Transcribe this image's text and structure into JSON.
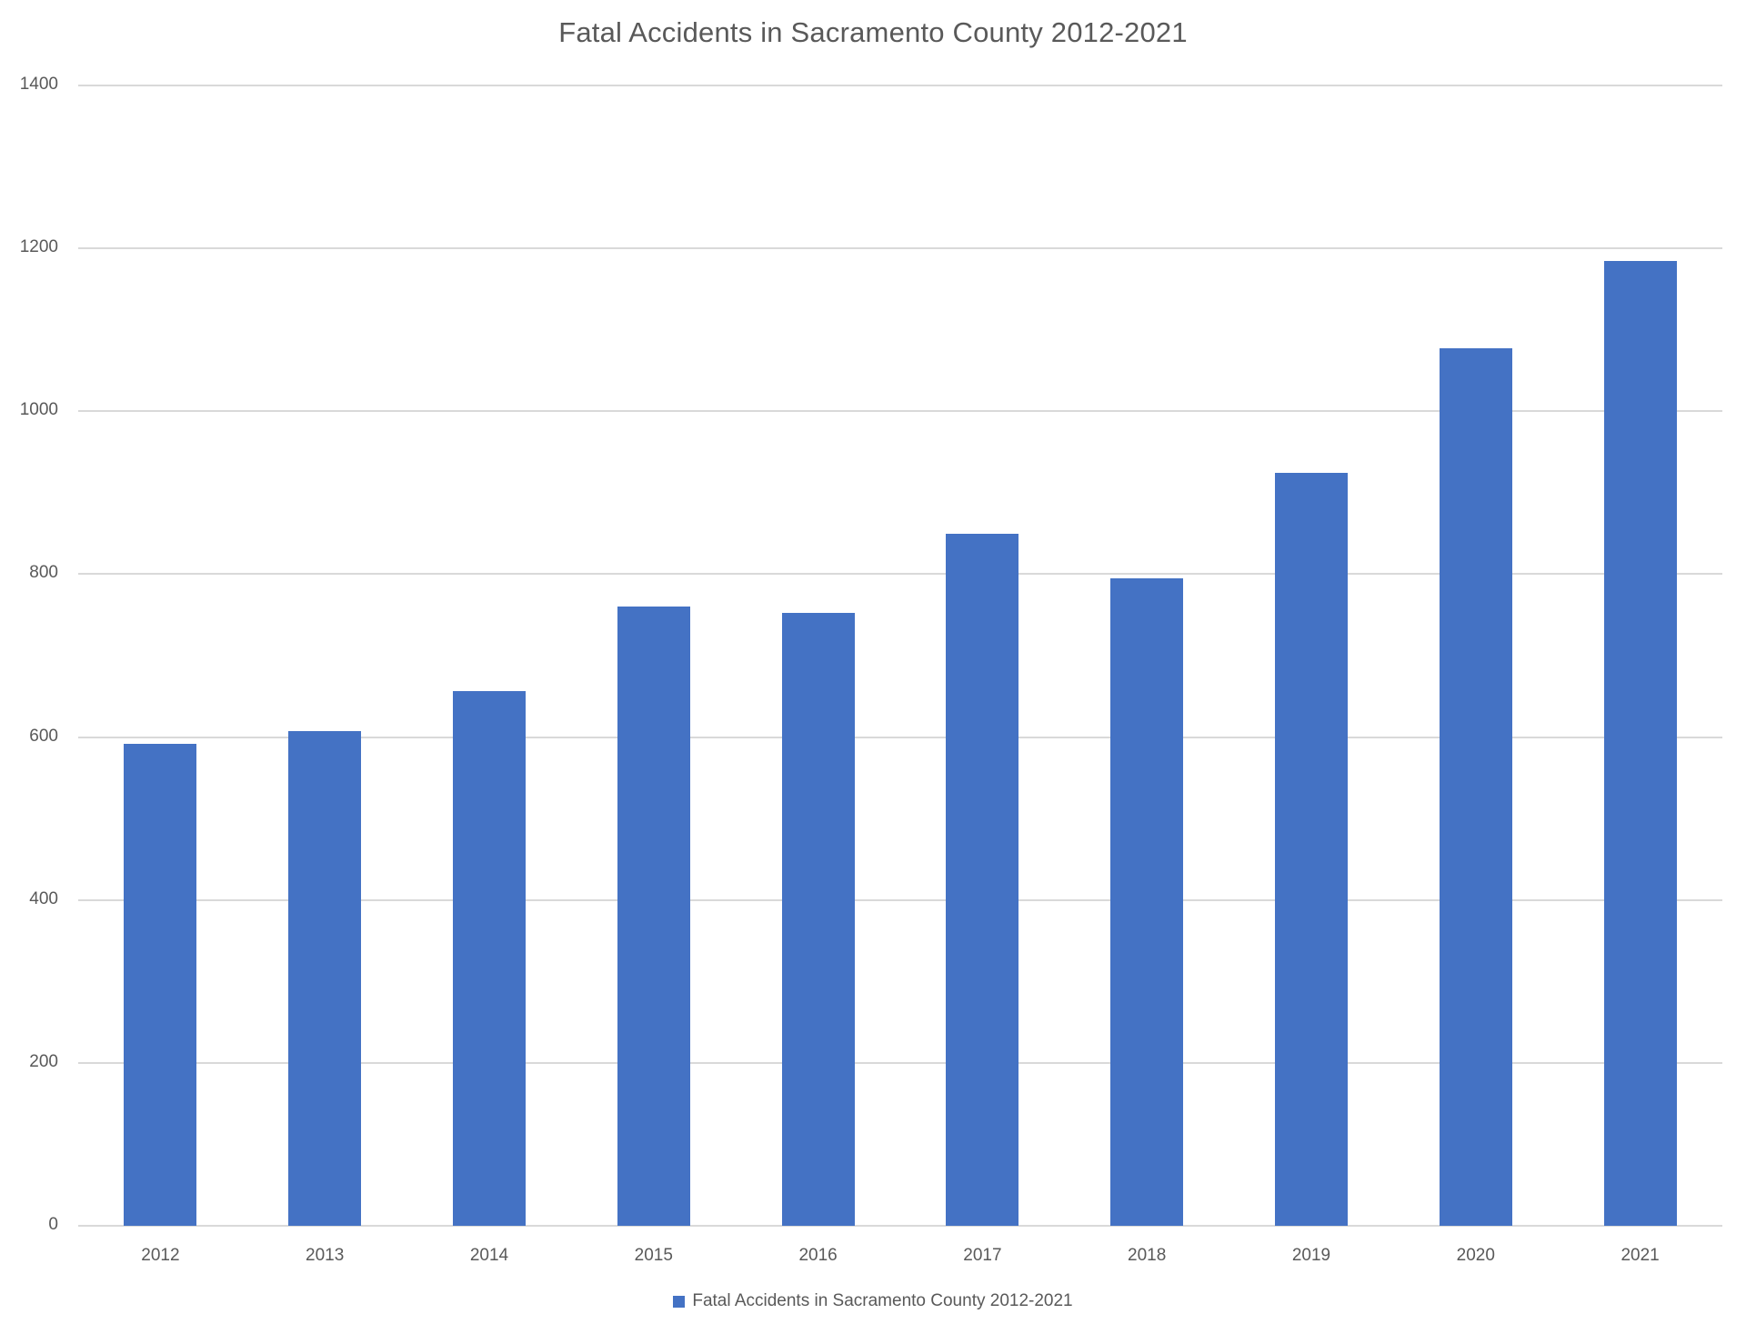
{
  "chart_data": {
    "type": "bar",
    "title": "Fatal Accidents in Sacramento County 2012-2021",
    "xlabel": "",
    "ylabel": "",
    "categories": [
      "2012",
      "2013",
      "2014",
      "2015",
      "2016",
      "2017",
      "2018",
      "2019",
      "2020",
      "2021"
    ],
    "series": [
      {
        "name": "Fatal Accidents in Sacramento County 2012-2021",
        "values": [
          592,
          607,
          657,
          760,
          752,
          850,
          795,
          924,
          1077,
          1185
        ],
        "color": "#4472C4"
      }
    ],
    "ylim": [
      0,
      1400
    ],
    "yticks": [
      "0",
      "200",
      "400",
      "600",
      "800",
      "1000",
      "1200",
      "1400"
    ],
    "grid": true,
    "legend_position": "bottom"
  },
  "colors": {
    "bar": "#4472C4",
    "gridline": "#D9D9D9",
    "text": "#595959"
  }
}
